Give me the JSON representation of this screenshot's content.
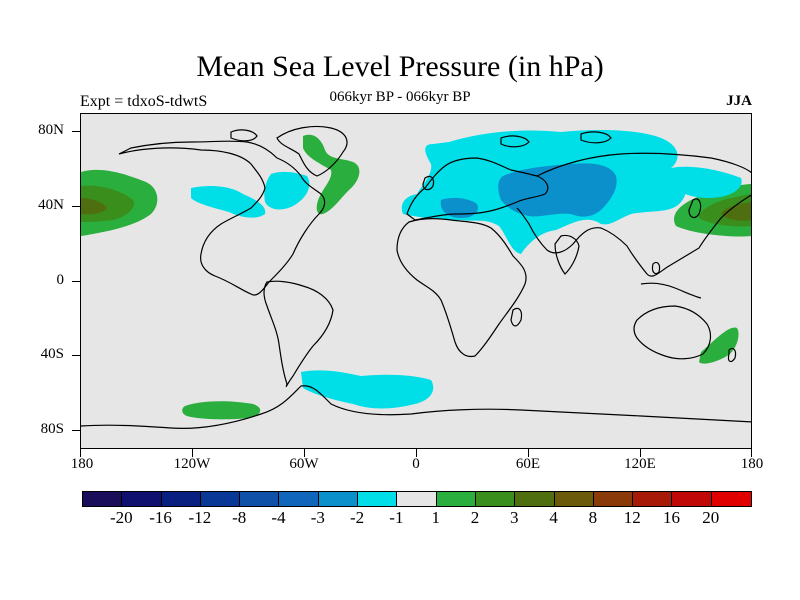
{
  "title": "Mean Sea Level Pressure (in hPa)",
  "experiment_label": "Expt = tdxoS-tdwtS",
  "period_label": "066kyr BP - 066kyr BP",
  "season_label": "JJA",
  "y_axis_ticks": [
    "80N",
    "40N",
    "0",
    "40S",
    "80S"
  ],
  "x_axis_ticks": [
    "180",
    "120W",
    "60W",
    "0",
    "60E",
    "120E",
    "180"
  ],
  "colorbar": {
    "labels": [
      "-20",
      "-16",
      "-12",
      "-8",
      "-4",
      "-3",
      "-2",
      "-1",
      "1",
      "2",
      "3",
      "4",
      "8",
      "12",
      "16",
      "20"
    ],
    "colors": [
      "#1a0e5a",
      "#101070",
      "#0a2080",
      "#0a3896",
      "#0f50a8",
      "#1066bb",
      "#0c90cc",
      "#00dfe8",
      "#e6e6e6",
      "#2aae3e",
      "#3a8e1c",
      "#4e6e10",
      "#6a5a0a",
      "#8a3a08",
      "#a81a08",
      "#c00808",
      "#e00000"
    ]
  },
  "map_colors": {
    "background": "#e6e6e6",
    "neg1": "#00dfe8",
    "neg2": "#0c90cc",
    "pos1": "#2aae3e",
    "pos2": "#3a8e1c",
    "pos3": "#4e6e10"
  }
}
